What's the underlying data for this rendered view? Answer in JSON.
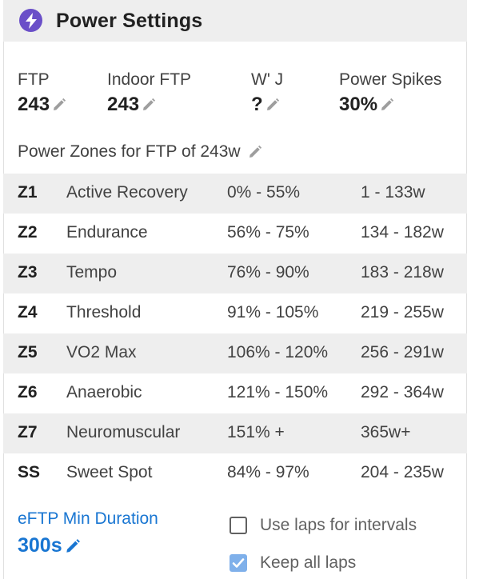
{
  "header": {
    "title": "Power Settings",
    "icon": "lightning-bolt-icon",
    "badge_color": "#6a4fc8"
  },
  "stats": {
    "ftp": {
      "label": "FTP",
      "value": "243"
    },
    "indoor_ftp": {
      "label": "Indoor FTP",
      "value": "243"
    },
    "w_prime": {
      "label": "W' J",
      "value": "?"
    },
    "power_spikes": {
      "label": "Power Spikes",
      "value": "30%"
    }
  },
  "zones": {
    "title": "Power Zones for FTP of 243w",
    "rows": [
      {
        "code": "Z1",
        "name": "Active Recovery",
        "pct": "0% - 55%",
        "watts": "1 - 133w"
      },
      {
        "code": "Z2",
        "name": "Endurance",
        "pct": "56% - 75%",
        "watts": "134 - 182w"
      },
      {
        "code": "Z3",
        "name": "Tempo",
        "pct": "76% - 90%",
        "watts": "183 - 218w"
      },
      {
        "code": "Z4",
        "name": "Threshold",
        "pct": "91% - 105%",
        "watts": "219 - 255w"
      },
      {
        "code": "Z5",
        "name": "VO2 Max",
        "pct": "106% - 120%",
        "watts": "256 - 291w"
      },
      {
        "code": "Z6",
        "name": "Anaerobic",
        "pct": "121% - 150%",
        "watts": "292 - 364w"
      },
      {
        "code": "Z7",
        "name": "Neuromuscular",
        "pct": "151% +",
        "watts": "365w+"
      },
      {
        "code": "SS",
        "name": "Sweet Spot",
        "pct": "84% - 97%",
        "watts": "204 - 235w"
      }
    ]
  },
  "eftp": {
    "label": "eFTP Min Duration",
    "value": "300s",
    "color": "#1976d2"
  },
  "options": {
    "use_laps": {
      "label": "Use laps for intervals",
      "checked": false
    },
    "keep_all_laps": {
      "label": "Keep all laps",
      "checked": true
    }
  }
}
